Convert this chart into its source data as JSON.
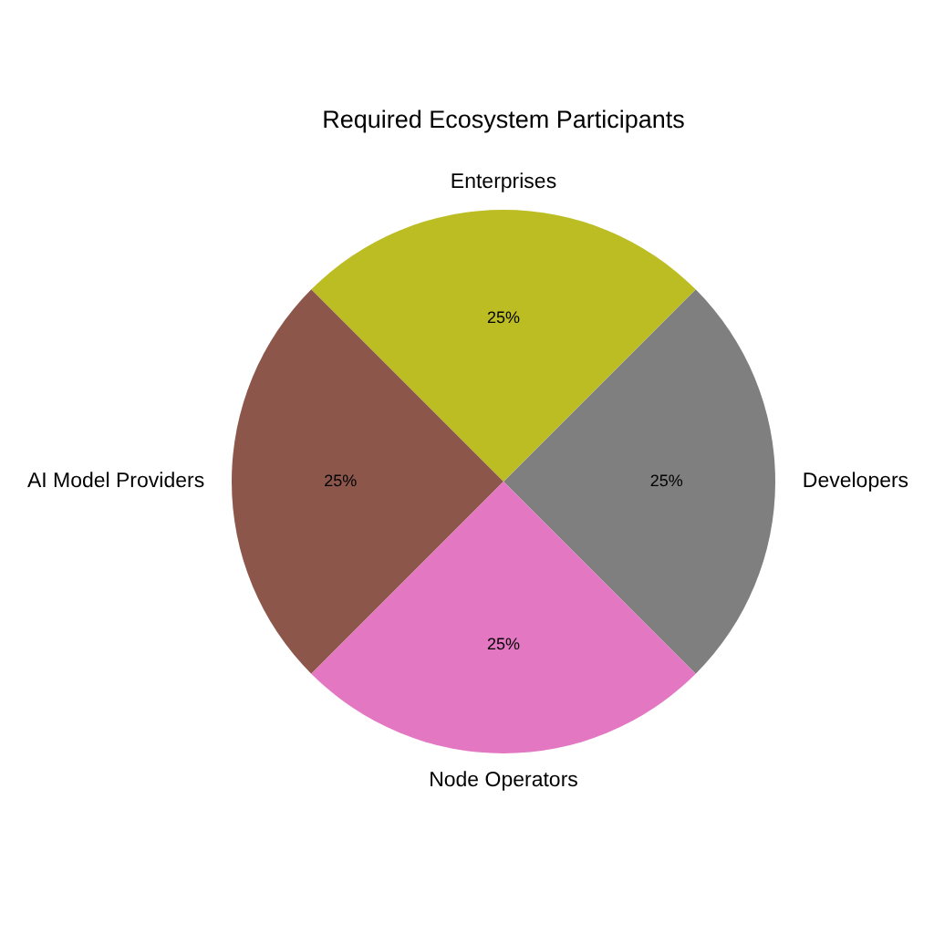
{
  "chart_data": {
    "type": "pie",
    "title": "Required Ecosystem Participants",
    "categories": [
      "Developers",
      "Enterprises",
      "AI Model Providers",
      "Node Operators"
    ],
    "values": [
      25,
      25,
      25,
      25
    ],
    "value_labels": [
      "25%",
      "25%",
      "25%",
      "25%"
    ],
    "colors": [
      "#7f7f7f",
      "#bcbd22",
      "#8c564b",
      "#e377c2"
    ]
  }
}
